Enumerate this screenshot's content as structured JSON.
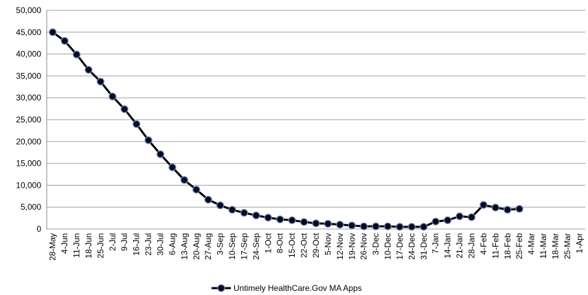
{
  "chart_data": {
    "type": "line",
    "categories": [
      "28-May",
      "4-Jun",
      "11-Jun",
      "18-Jun",
      "25-Jun",
      "2-Jul",
      "9-Jul",
      "16-Jul",
      "23-Jul",
      "30-Jul",
      "6-Aug",
      "13-Aug",
      "20-Aug",
      "27-Aug",
      "3-Sep",
      "10-Sep",
      "17-Sep",
      "24-Sep",
      "1-Oct",
      "8-Oct",
      "15-Oct",
      "22-Oct",
      "29-Oct",
      "5-Nov",
      "12-Nov",
      "19-Nov",
      "26-Nov",
      "3-Dec",
      "10-Dec",
      "17-Dec",
      "24-Dec",
      "31-Dec",
      "7-Jan",
      "14-Jan",
      "21-Jan",
      "28-Jan",
      "4-Feb",
      "11-Feb",
      "18-Feb",
      "25-Feb",
      "4-Mar",
      "11-Mar",
      "18-Mar",
      "25-Mar",
      "1-Apr"
    ],
    "series": [
      {
        "name": "Untimely HealthCare.Gov MA Apps",
        "color": "#000000",
        "values": [
          45000,
          43000,
          39900,
          36400,
          33700,
          30300,
          27400,
          24000,
          20300,
          17100,
          14100,
          11200,
          9000,
          6700,
          5400,
          4400,
          3700,
          3100,
          2600,
          2200,
          2000,
          1600,
          1300,
          1200,
          1000,
          800,
          600,
          600,
          600,
          500,
          500,
          500,
          1700,
          2000,
          2900,
          2700,
          5500,
          4900,
          4400,
          4600,
          null,
          null,
          null,
          null,
          null
        ]
      }
    ],
    "ylim": [
      0,
      50000
    ],
    "yticks": [
      0,
      {
        "value": 5000,
        "label": "5,000"
      },
      {
        "value": 10000,
        "label": "10,000"
      },
      {
        "value": 15000,
        "label": "15,000"
      },
      {
        "value": 20000,
        "label": "20,000"
      },
      {
        "value": 25000,
        "label": "25,000"
      },
      {
        "value": 30000,
        "label": "30,000"
      },
      {
        "value": 35000,
        "label": "35,000"
      },
      {
        "value": 40000,
        "label": "40,000"
      },
      {
        "value": 45000,
        "label": "45,000"
      },
      {
        "value": 50000,
        "label": "50,000"
      }
    ],
    "grid": true,
    "legend": "bottom"
  }
}
